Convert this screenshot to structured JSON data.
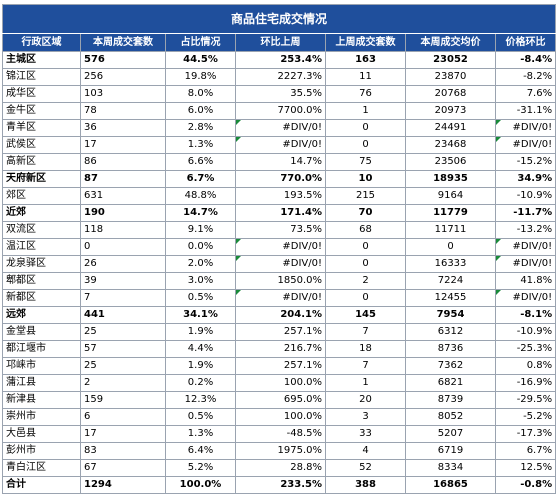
{
  "title": "商品住宅成交情况",
  "table": {
    "header": [
      "行政区域",
      "本周成交套数",
      "占比情况",
      "环比上周",
      "上周成交套数",
      "本周成交均价",
      "价格环比"
    ],
    "rows": [
      [
        "主城区",
        "576",
        "44.5%",
        "253.4%",
        "163",
        "23052",
        "-8.4%"
      ],
      [
        "锦江区",
        "256",
        "19.8%",
        "2227.3%",
        "11",
        "23870",
        "-8.2%"
      ],
      [
        "成华区",
        "103",
        "8.0%",
        "35.5%",
        "76",
        "20768",
        "7.6%"
      ],
      [
        "金牛区",
        "78",
        "6.0%",
        "7700.0%",
        "1",
        "20973",
        "-31.1%"
      ],
      [
        "青羊区",
        "36",
        "2.8%",
        "#DIV/0!",
        "0",
        "24491",
        "#DIV/0!"
      ],
      [
        "武侯区",
        "17",
        "1.3%",
        "#DIV/0!",
        "0",
        "23468",
        "#DIV/0!"
      ],
      [
        "高新区",
        "86",
        "6.6%",
        "14.7%",
        "75",
        "23506",
        "-15.2%"
      ],
      [
        "天府新区",
        "87",
        "6.7%",
        "770.0%",
        "10",
        "18935",
        "34.9%"
      ],
      [
        "郊区",
        "631",
        "48.8%",
        "193.5%",
        "215",
        "9164",
        "-10.9%"
      ],
      [
        "近郊",
        "190",
        "14.7%",
        "171.4%",
        "70",
        "11779",
        "-11.7%"
      ],
      [
        "双流区",
        "118",
        "9.1%",
        "73.5%",
        "68",
        "11711",
        "-13.2%"
      ],
      [
        "温江区",
        "0",
        "0.0%",
        "#DIV/0!",
        "0",
        "0",
        "#DIV/0!"
      ],
      [
        "龙泉驿区",
        "26",
        "2.0%",
        "#DIV/0!",
        "0",
        "16333",
        "#DIV/0!"
      ],
      [
        "郫都区",
        "39",
        "3.0%",
        "1850.0%",
        "2",
        "7224",
        "41.8%"
      ],
      [
        "新都区",
        "7",
        "0.5%",
        "#DIV/0!",
        "0",
        "12455",
        "#DIV/0!"
      ],
      [
        "远郊",
        "441",
        "34.1%",
        "204.1%",
        "145",
        "7954",
        "-8.1%"
      ],
      [
        "金堂县",
        "25",
        "1.9%",
        "257.1%",
        "7",
        "6312",
        "-10.9%"
      ],
      [
        "都江堰市",
        "57",
        "4.4%",
        "216.7%",
        "18",
        "8736",
        "-25.3%"
      ],
      [
        "邛崃市",
        "25",
        "1.9%",
        "257.1%",
        "7",
        "7362",
        "0.8%"
      ],
      [
        "蒲江县",
        "2",
        "0.2%",
        "100.0%",
        "1",
        "6821",
        "-16.9%"
      ],
      [
        "新津县",
        "159",
        "12.3%",
        "695.0%",
        "20",
        "8739",
        "-29.5%"
      ],
      [
        "崇州市",
        "6",
        "0.5%",
        "100.0%",
        "3",
        "8052",
        "-5.2%"
      ],
      [
        "大邑县",
        "17",
        "1.3%",
        "-48.5%",
        "33",
        "5207",
        "-17.3%"
      ],
      [
        "彭州市",
        "83",
        "6.4%",
        "1975.0%",
        "4",
        "6719",
        "6.7%"
      ],
      [
        "青白江区",
        "67",
        "5.2%",
        "28.8%",
        "52",
        "8334",
        "12.5%"
      ],
      [
        "合计",
        "1294",
        "100.0%",
        "233.5%",
        "388",
        "16865",
        "-0.8%"
      ]
    ]
  }
}
